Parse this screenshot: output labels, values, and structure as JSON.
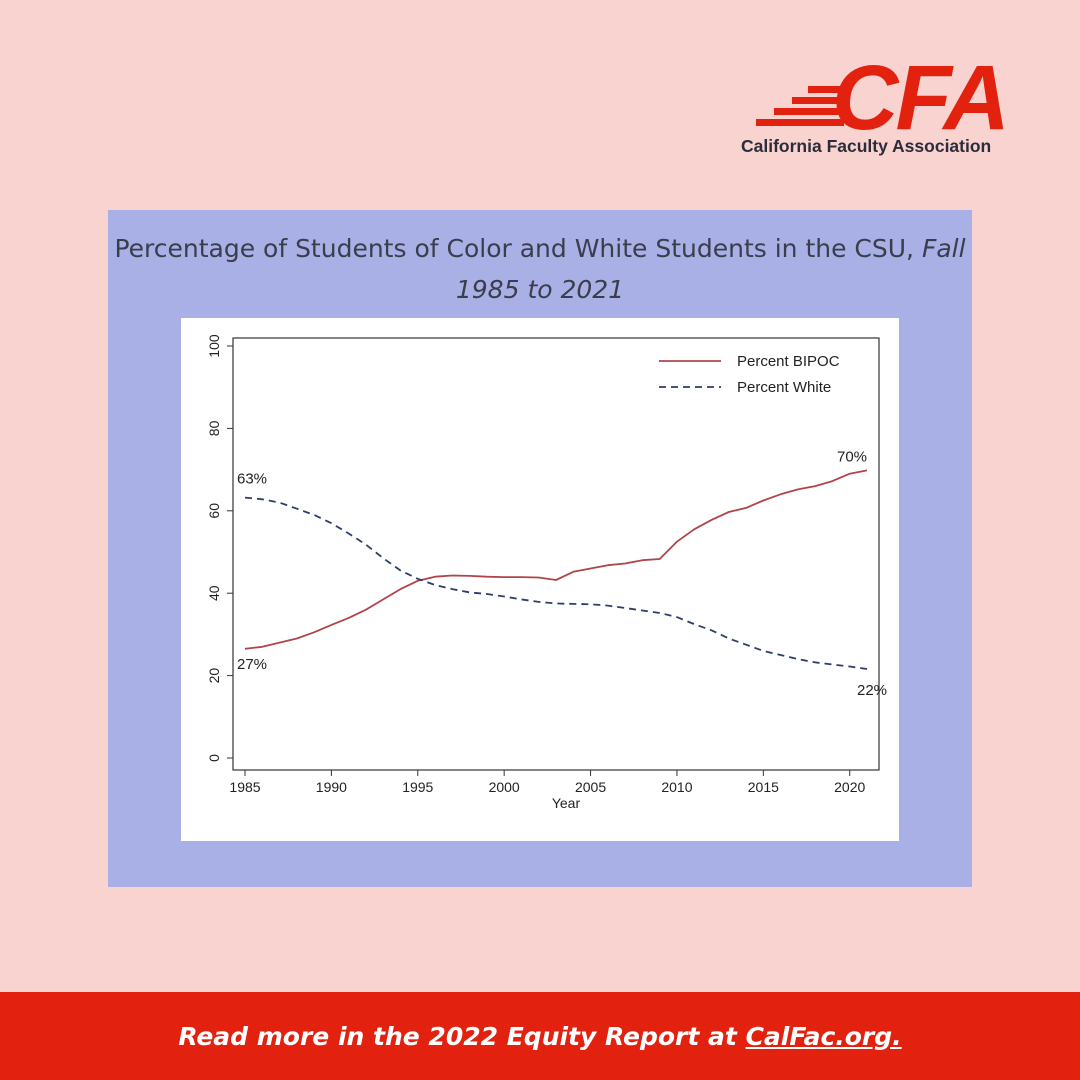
{
  "logo": {
    "mark": "CFA",
    "name": "California Faculty Association"
  },
  "chart_title": {
    "main": "Percentage of Students of Color and White Students in the CSU, ",
    "italic": "Fall 1985 to 2021"
  },
  "footer": {
    "prefix": "Read more in the 2022 Equity Report at ",
    "link": "CalFac.org."
  },
  "colors": {
    "background": "#f9d3cf",
    "panel": "#a8b0e6",
    "brand_red": "#e2220f",
    "bipoc_line": "#b0444a",
    "white_line": "#2f3d6a"
  },
  "chart_data": {
    "type": "line",
    "xlabel": "Year",
    "ylabel": "",
    "xlim": [
      1985,
      2021
    ],
    "ylim": [
      0,
      100
    ],
    "x_ticks": [
      1985,
      1990,
      1995,
      2000,
      2005,
      2010,
      2015,
      2020
    ],
    "y_ticks": [
      0,
      20,
      40,
      60,
      80,
      100
    ],
    "legend_position": "top-right",
    "grid": false,
    "x": [
      1985,
      1986,
      1987,
      1988,
      1989,
      1990,
      1991,
      1992,
      1993,
      1994,
      1995,
      1996,
      1997,
      1998,
      1999,
      2000,
      2001,
      2002,
      2003,
      2004,
      2005,
      2006,
      2007,
      2008,
      2009,
      2010,
      2011,
      2012,
      2013,
      2014,
      2015,
      2016,
      2017,
      2018,
      2019,
      2020,
      2021
    ],
    "series": [
      {
        "name": "Percent BIPOC",
        "style": "solid",
        "values": [
          26.5,
          27,
          28,
          29,
          30.5,
          32.3,
          34,
          36,
          38.5,
          41,
          43,
          44,
          44.3,
          44.2,
          44,
          43.9,
          43.9,
          43.8,
          43.2,
          45.2,
          46,
          46.8,
          47.2,
          48,
          48.3,
          52.5,
          55.5,
          57.8,
          59.7,
          60.7,
          62.5,
          64,
          65.2,
          66,
          67.2,
          69,
          69.8
        ]
      },
      {
        "name": "Percent White",
        "style": "dashed",
        "values": [
          63.2,
          62.8,
          62,
          60.5,
          59,
          57,
          54.5,
          51.8,
          48.5,
          45.5,
          43.5,
          42,
          41,
          40.2,
          39.8,
          39.2,
          38.5,
          37.9,
          37.5,
          37.4,
          37.3,
          37,
          36.4,
          35.8,
          35.2,
          34.2,
          32.5,
          31,
          29,
          27.5,
          26,
          25,
          24,
          23.2,
          22.7,
          22.2,
          21.6
        ]
      }
    ],
    "annotations": [
      {
        "text": "63%",
        "x": 1985,
        "y": 63.2
      },
      {
        "text": "27%",
        "x": 1985,
        "y": 26.5
      },
      {
        "text": "70%",
        "x": 2021,
        "y": 69.8
      },
      {
        "text": "22%",
        "x": 2021,
        "y": 21.6
      }
    ]
  }
}
